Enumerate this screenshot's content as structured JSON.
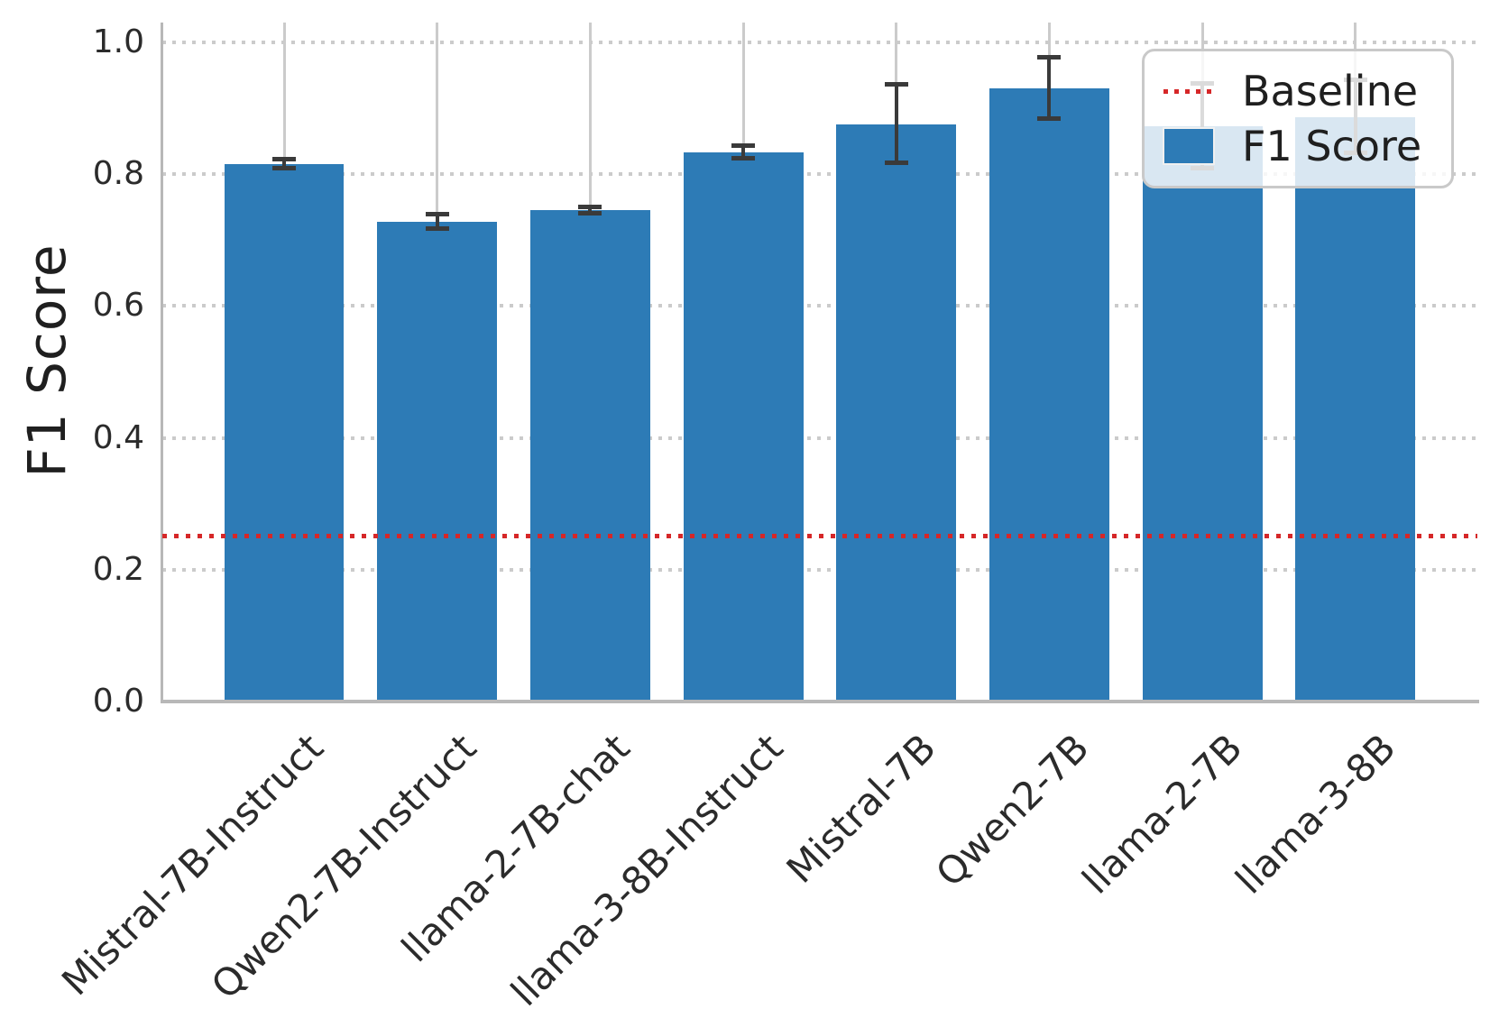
{
  "figure": {
    "ylabel": "F1 Score"
  },
  "legend": {
    "position": "upper right",
    "items": [
      {
        "label": "Baseline",
        "swatch": "red-dotted-line"
      },
      {
        "label": "F1 Score",
        "swatch": "blue-square"
      }
    ]
  },
  "chart_data": {
    "type": "bar",
    "title": "",
    "xlabel": "",
    "ylabel": "F1 Score",
    "categories": [
      "Mistral-7B-Instruct",
      "Qwen2-7B-Instruct",
      "llama-2-7B-chat",
      "llama-3-8B-Instruct",
      "Mistral-7B",
      "Qwen2-7B",
      "llama-2-7B",
      "llama-3-8B"
    ],
    "series": [
      {
        "name": "F1 Score",
        "values": [
          0.815,
          0.728,
          0.745,
          0.833,
          0.876,
          0.93,
          0.873,
          0.887
        ],
        "error_bars": [
          0.007,
          0.011,
          0.005,
          0.01,
          0.06,
          0.046,
          0.064,
          0.055
        ]
      }
    ],
    "baseline": {
      "label": "Baseline",
      "value": 0.25,
      "style": "dotted"
    },
    "yticks": [
      0.0,
      0.2,
      0.4,
      0.6,
      0.8,
      1.0
    ],
    "ytick_labels": [
      "0.0",
      "0.2",
      "0.4",
      "0.6",
      "0.8",
      "1.0"
    ],
    "ylim": [
      0,
      1.03
    ],
    "grid": {
      "horizontal": "dotted",
      "vertical": "solid"
    },
    "legend_position": "upper right",
    "colors": {
      "bar": "#2d7bb6",
      "baseline": "#d62728",
      "error": "#3a3a3a",
      "grid": "#cbcbcb",
      "spine": "#b8b8b8",
      "text": "#1f1f1f"
    }
  }
}
